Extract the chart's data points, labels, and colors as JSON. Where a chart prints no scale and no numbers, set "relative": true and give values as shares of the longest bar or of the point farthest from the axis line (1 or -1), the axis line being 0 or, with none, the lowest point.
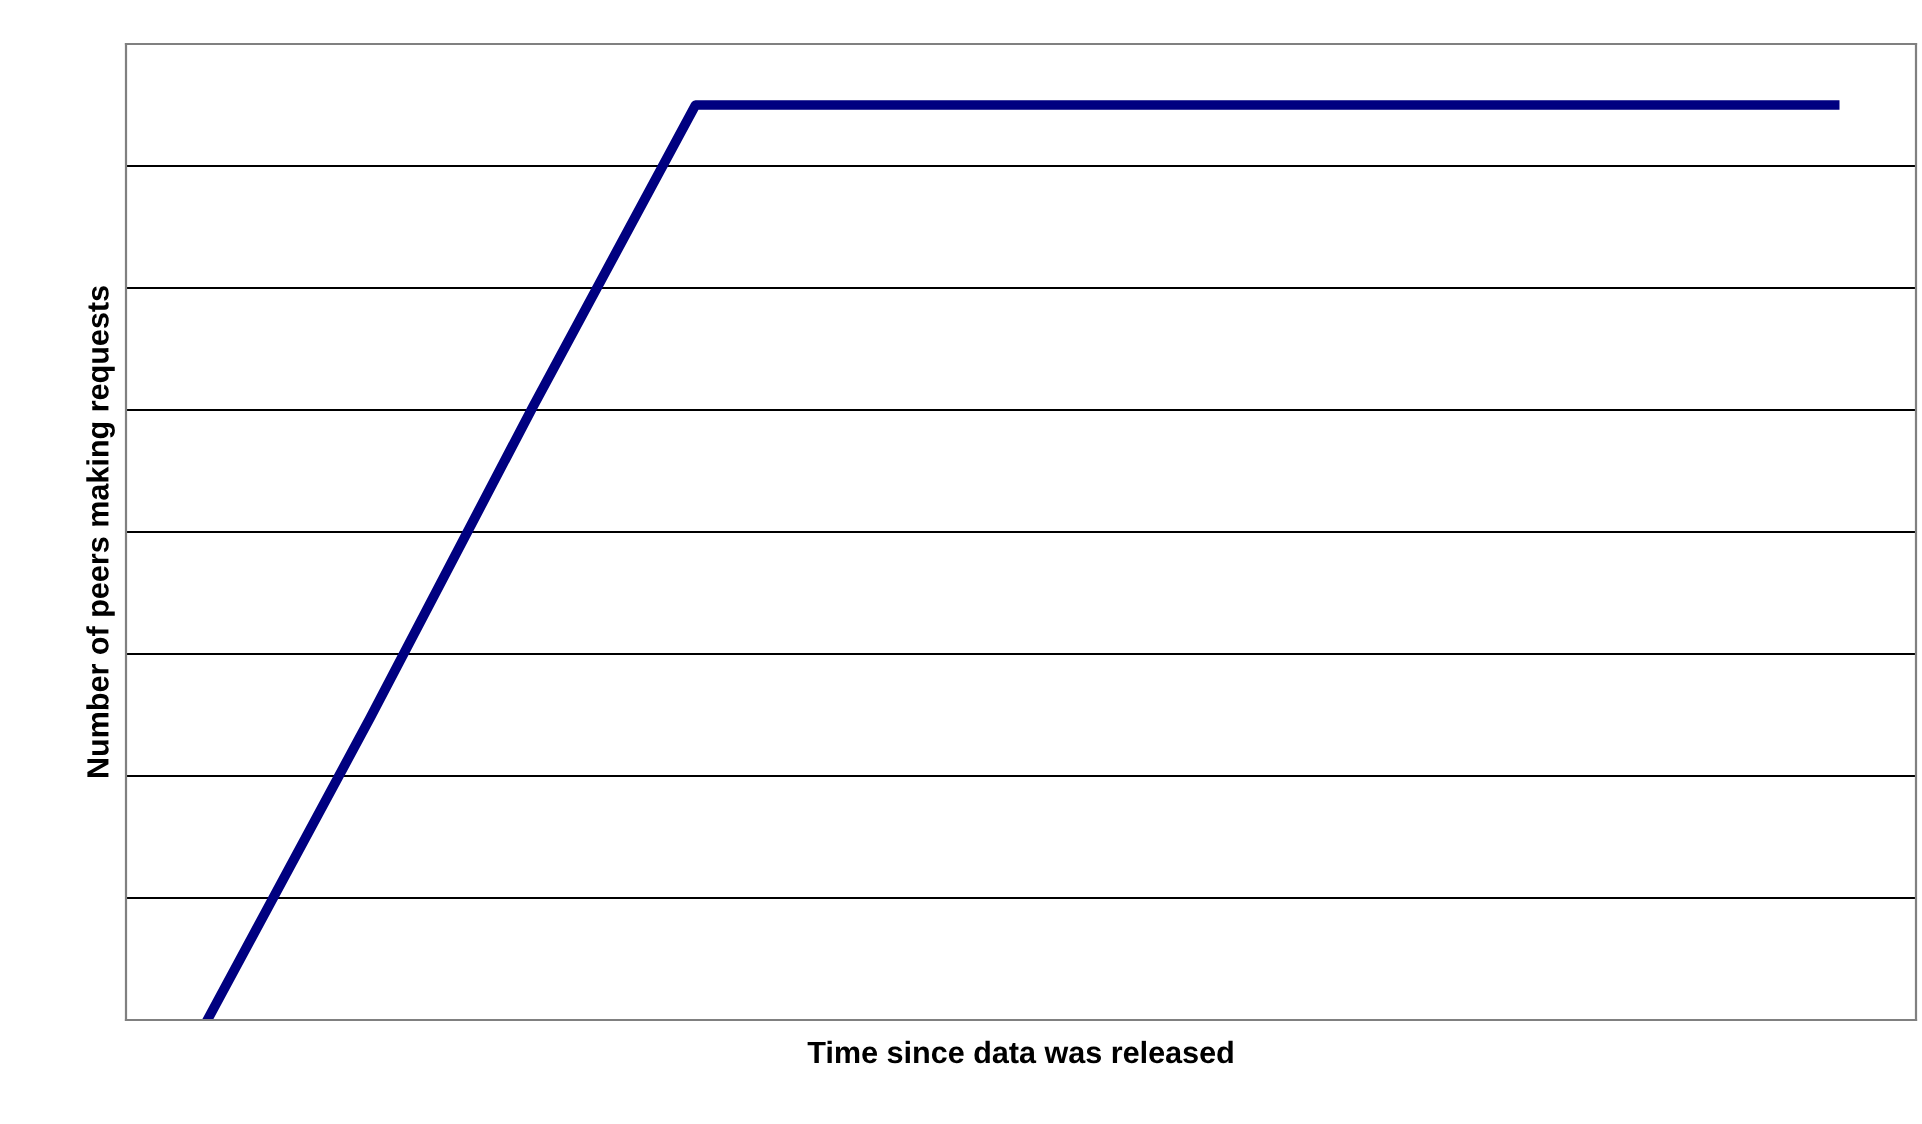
{
  "chart_data": {
    "type": "line",
    "relative": true,
    "xlabel": "Time since data was released",
    "ylabel": "Number of peers making requests",
    "categories": [
      null,
      null,
      null,
      null,
      null,
      null,
      null,
      null,
      null,
      null,
      null
    ],
    "grid": "y",
    "marker": "none",
    "line_style": "solid",
    "series": [
      {
        "color": "#000080",
        "values": [
          0,
          0.33,
          0.67,
          1,
          1,
          1,
          1,
          1,
          1,
          1,
          1
        ]
      }
    ]
  }
}
